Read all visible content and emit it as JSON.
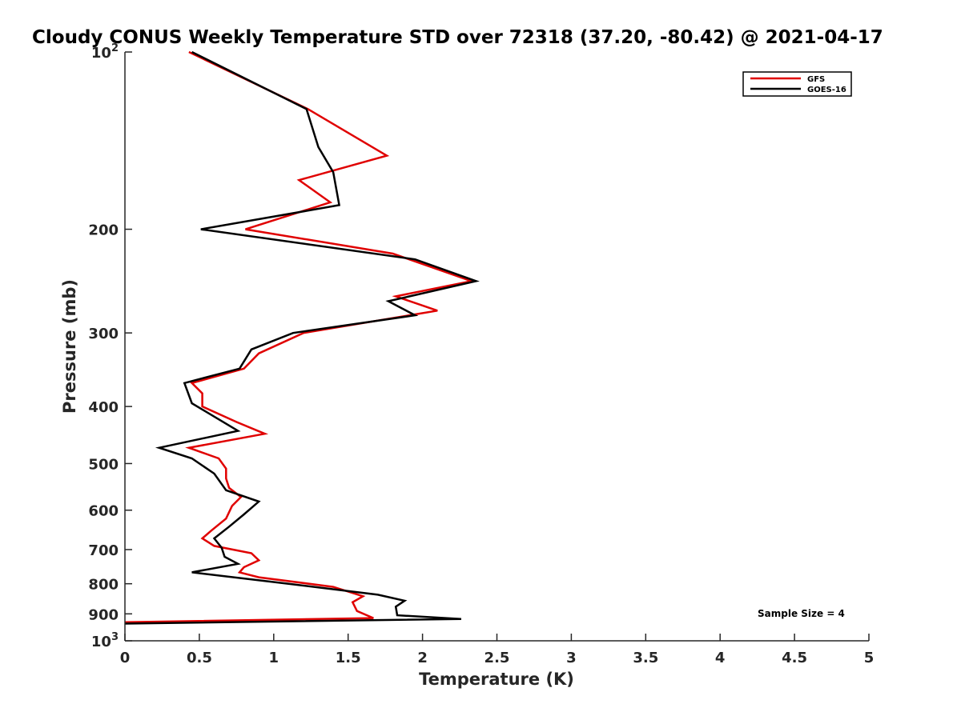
{
  "chart_data": {
    "type": "line",
    "title": "Cloudy CONUS Weekly Temperature STD over 72318 (37.20, -80.42) @ 2021-04-17",
    "xlabel": "Temperature (K)",
    "ylabel": "Pressure (mb)",
    "xlim": [
      0,
      5
    ],
    "ylim": [
      100,
      1000
    ],
    "y_scale": "log",
    "y_reversed": true,
    "x_ticks": [
      {
        "value": 0,
        "label": "0"
      },
      {
        "value": 0.5,
        "label": "0.5"
      },
      {
        "value": 1,
        "label": "1"
      },
      {
        "value": 1.5,
        "label": "1.5"
      },
      {
        "value": 2,
        "label": "2"
      },
      {
        "value": 2.5,
        "label": "2.5"
      },
      {
        "value": 3,
        "label": "3"
      },
      {
        "value": 3.5,
        "label": "3.5"
      },
      {
        "value": 4,
        "label": "4"
      },
      {
        "value": 4.5,
        "label": "4.5"
      },
      {
        "value": 5,
        "label": "5"
      }
    ],
    "y_ticks": [
      {
        "value": 100,
        "base": "10",
        "exp": "2"
      },
      {
        "value": 200,
        "label": "200"
      },
      {
        "value": 300,
        "label": "300"
      },
      {
        "value": 400,
        "label": "400"
      },
      {
        "value": 500,
        "label": "500"
      },
      {
        "value": 600,
        "label": "600"
      },
      {
        "value": 700,
        "label": "700"
      },
      {
        "value": 800,
        "label": "800"
      },
      {
        "value": 900,
        "label": "900"
      },
      {
        "value": 1000,
        "base": "10",
        "exp": "3"
      }
    ],
    "legend_position": "top-right",
    "annotation": "Sample Size = 4",
    "series": [
      {
        "name": "GFS",
        "color": "#e00000",
        "points": [
          [
            0.43,
            100
          ],
          [
            1.23,
            125
          ],
          [
            1.76,
            150
          ],
          [
            1.17,
            165
          ],
          [
            1.38,
            180
          ],
          [
            0.81,
            200
          ],
          [
            1.8,
            220
          ],
          [
            2.33,
            245
          ],
          [
            1.82,
            260
          ],
          [
            2.1,
            275
          ],
          [
            1.2,
            300
          ],
          [
            0.9,
            325
          ],
          [
            0.8,
            345
          ],
          [
            0.45,
            365
          ],
          [
            0.52,
            380
          ],
          [
            0.52,
            400
          ],
          [
            0.75,
            425
          ],
          [
            0.94,
            445
          ],
          [
            0.43,
            470
          ],
          [
            0.63,
            490
          ],
          [
            0.68,
            510
          ],
          [
            0.68,
            530
          ],
          [
            0.7,
            550
          ],
          [
            0.78,
            570
          ],
          [
            0.72,
            590
          ],
          [
            0.68,
            620
          ],
          [
            0.58,
            650
          ],
          [
            0.52,
            670
          ],
          [
            0.6,
            690
          ],
          [
            0.85,
            710
          ],
          [
            0.9,
            730
          ],
          [
            0.8,
            750
          ],
          [
            0.77,
            765
          ],
          [
            0.9,
            780
          ],
          [
            1.4,
            810
          ],
          [
            1.6,
            840
          ],
          [
            1.53,
            860
          ],
          [
            1.56,
            890
          ],
          [
            1.67,
            915
          ],
          [
            0.0,
            930
          ]
        ]
      },
      {
        "name": "GOES-16",
        "color": "#000000",
        "points": [
          [
            0.45,
            100
          ],
          [
            1.22,
            125
          ],
          [
            1.3,
            145
          ],
          [
            1.4,
            160
          ],
          [
            1.44,
            182
          ],
          [
            0.51,
            200
          ],
          [
            1.95,
            225
          ],
          [
            2.36,
            245
          ],
          [
            1.77,
            265
          ],
          [
            1.95,
            280
          ],
          [
            1.13,
            300
          ],
          [
            0.85,
            320
          ],
          [
            0.77,
            345
          ],
          [
            0.4,
            365
          ],
          [
            0.45,
            395
          ],
          [
            0.76,
            440
          ],
          [
            0.23,
            470
          ],
          [
            0.45,
            490
          ],
          [
            0.6,
            520
          ],
          [
            0.68,
            555
          ],
          [
            0.9,
            580
          ],
          [
            0.8,
            610
          ],
          [
            0.7,
            640
          ],
          [
            0.6,
            670
          ],
          [
            0.65,
            695
          ],
          [
            0.67,
            720
          ],
          [
            0.76,
            740
          ],
          [
            0.45,
            765
          ],
          [
            1.1,
            800
          ],
          [
            1.7,
            835
          ],
          [
            1.88,
            855
          ],
          [
            1.82,
            875
          ],
          [
            1.83,
            905
          ],
          [
            2.26,
            918
          ],
          [
            0.0,
            935
          ]
        ]
      }
    ]
  }
}
